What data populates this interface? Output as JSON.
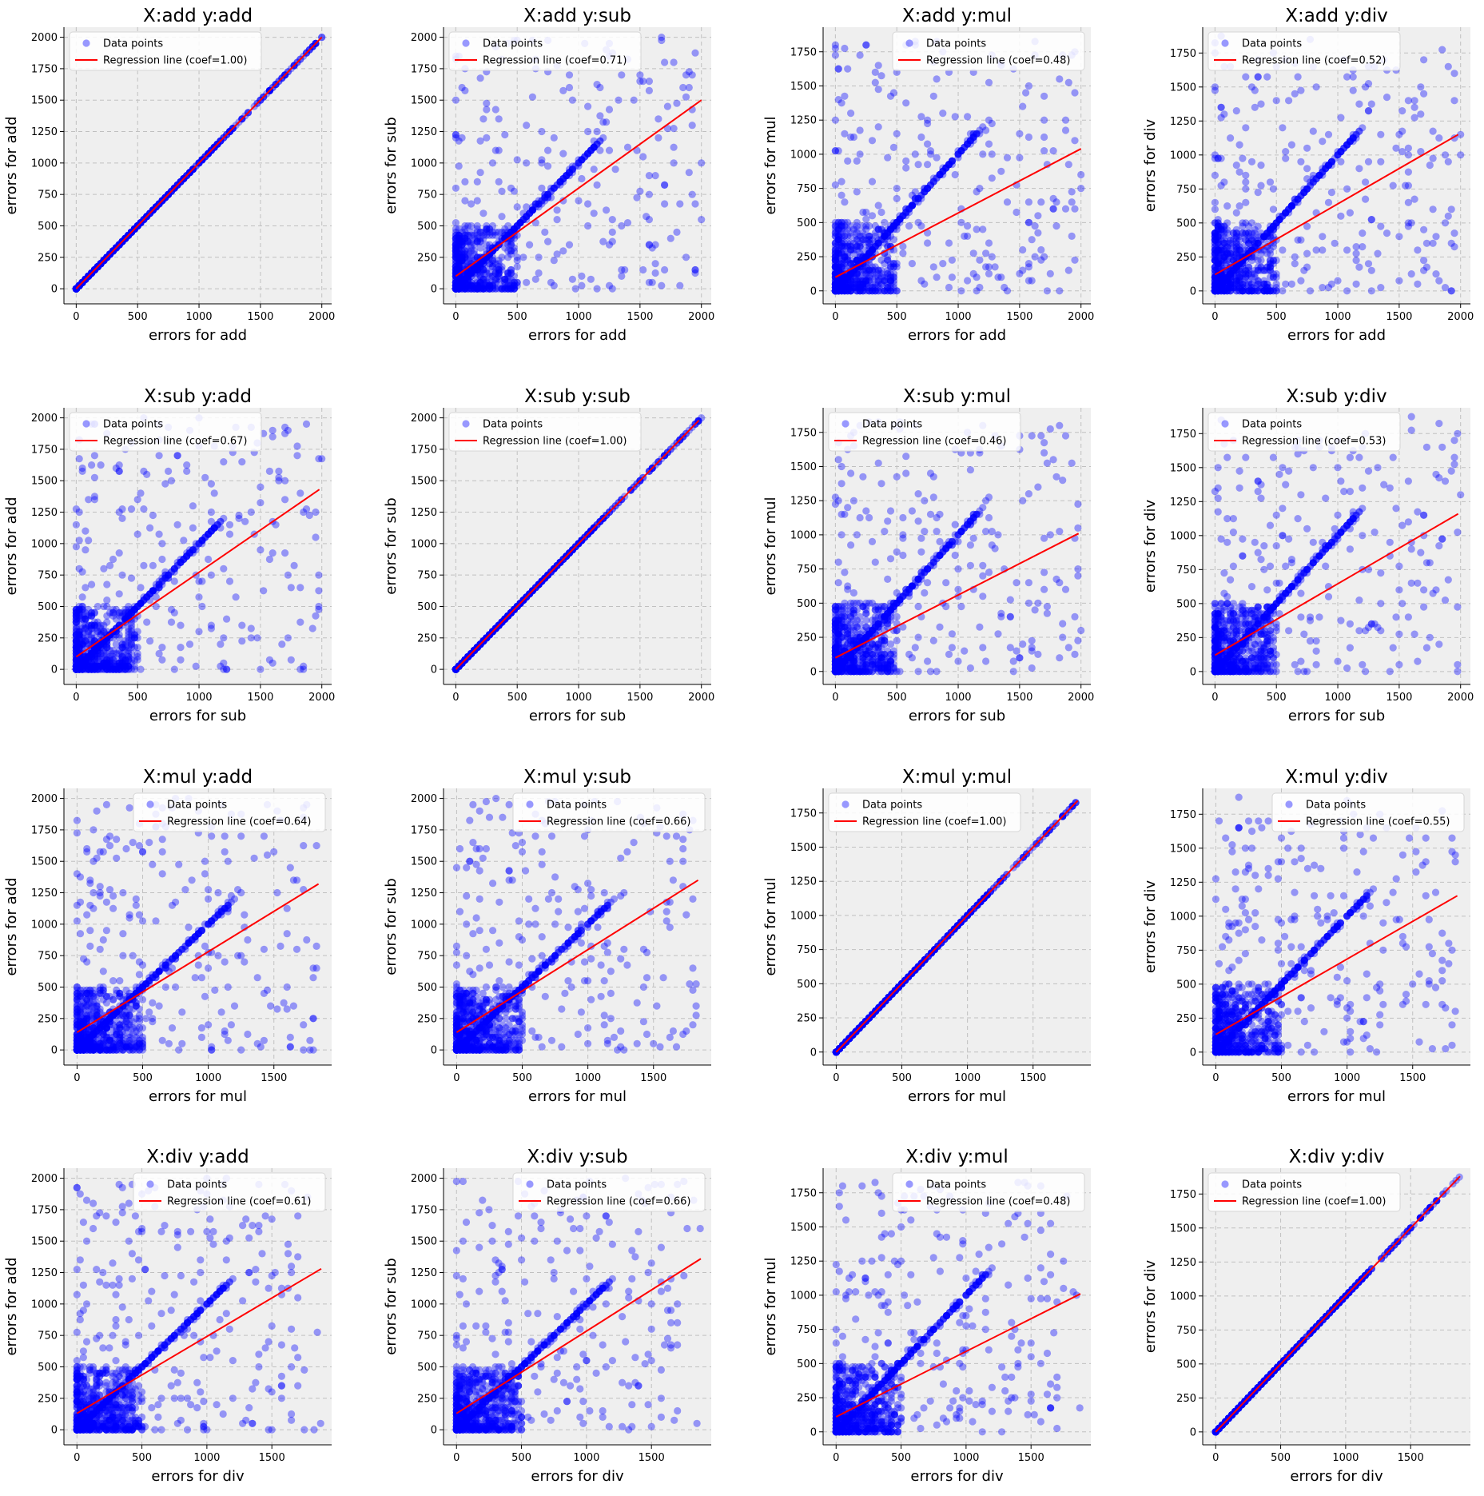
{
  "figure": {
    "legend_labels": {
      "points": "Data points",
      "line_prefix": "Regression line (coef=",
      "line_suffix": ")"
    },
    "colors": {
      "points": "#0000ff",
      "line": "#ff0000",
      "axes_bg": "#efefef",
      "grid": "#c0c0c0"
    }
  },
  "chart_data": [
    {
      "type": "scatter",
      "title": "X:add   y:add",
      "xlabel": "errors for add",
      "ylabel": "errors for add",
      "xlim": [
        -100,
        2080
      ],
      "ylim": [
        -120,
        2080
      ],
      "xticks": [
        0,
        500,
        1000,
        1500,
        2000
      ],
      "yticks": [
        0,
        250,
        500,
        750,
        1000,
        1250,
        1500,
        1750,
        2000
      ],
      "series": [
        {
          "name": "Data points",
          "kind": "scatter"
        },
        {
          "name": "Regression line",
          "kind": "line",
          "coef": "1.00",
          "x": [
            0,
            2000
          ],
          "y": [
            0,
            2000
          ]
        }
      ],
      "legend": "top-left",
      "grid": true
    },
    {
      "type": "scatter",
      "title": "X:add   y:sub",
      "xlabel": "errors for add",
      "ylabel": "errors for sub",
      "xlim": [
        -100,
        2080
      ],
      "ylim": [
        -120,
        2080
      ],
      "xticks": [
        0,
        500,
        1000,
        1500,
        2000
      ],
      "yticks": [
        0,
        250,
        500,
        750,
        1000,
        1250,
        1500,
        1750,
        2000
      ],
      "series": [
        {
          "name": "Data points",
          "kind": "scatter"
        },
        {
          "name": "Regression line",
          "kind": "line",
          "coef": "0.71",
          "x": [
            0,
            2000
          ],
          "y": [
            100,
            1500
          ]
        }
      ],
      "legend": "top-left",
      "grid": true
    },
    {
      "type": "scatter",
      "title": "X:add   y:mul",
      "xlabel": "errors for add",
      "ylabel": "errors for mul",
      "xlim": [
        -100,
        2080
      ],
      "ylim": [
        -95,
        1930
      ],
      "xticks": [
        0,
        500,
        1000,
        1500,
        2000
      ],
      "yticks": [
        0,
        250,
        500,
        750,
        1000,
        1250,
        1500,
        1750
      ],
      "series": [
        {
          "name": "Data points",
          "kind": "scatter"
        },
        {
          "name": "Regression line",
          "kind": "line",
          "coef": "0.48",
          "x": [
            0,
            2000
          ],
          "y": [
            100,
            1040
          ]
        }
      ],
      "legend": "top-right",
      "grid": true
    },
    {
      "type": "scatter",
      "title": "X:add   y:div",
      "xlabel": "errors for add",
      "ylabel": "errors for div",
      "xlim": [
        -100,
        2080
      ],
      "ylim": [
        -95,
        1940
      ],
      "xticks": [
        0,
        500,
        1000,
        1500,
        2000
      ],
      "yticks": [
        0,
        250,
        500,
        750,
        1000,
        1250,
        1500,
        1750
      ],
      "series": [
        {
          "name": "Data points",
          "kind": "scatter"
        },
        {
          "name": "Regression line",
          "kind": "line",
          "coef": "0.52",
          "x": [
            0,
            1980
          ],
          "y": [
            120,
            1150
          ]
        }
      ],
      "legend": "top-left",
      "grid": true
    },
    {
      "type": "scatter",
      "title": "X:sub   y:add",
      "xlabel": "errors for sub",
      "ylabel": "errors for add",
      "xlim": [
        -100,
        2080
      ],
      "ylim": [
        -120,
        2080
      ],
      "xticks": [
        0,
        500,
        1000,
        1500,
        2000
      ],
      "yticks": [
        0,
        250,
        500,
        750,
        1000,
        1250,
        1500,
        1750,
        2000
      ],
      "series": [
        {
          "name": "Data points",
          "kind": "scatter"
        },
        {
          "name": "Regression line",
          "kind": "line",
          "coef": "0.67",
          "x": [
            0,
            1980
          ],
          "y": [
            100,
            1430
          ]
        }
      ],
      "legend": "top-left",
      "grid": true
    },
    {
      "type": "scatter",
      "title": "X:sub   y:sub",
      "xlabel": "errors for sub",
      "ylabel": "errors for sub",
      "xlim": [
        -100,
        2080
      ],
      "ylim": [
        -120,
        2080
      ],
      "xticks": [
        0,
        500,
        1000,
        1500,
        2000
      ],
      "yticks": [
        0,
        250,
        500,
        750,
        1000,
        1250,
        1500,
        1750,
        2000
      ],
      "series": [
        {
          "name": "Data points",
          "kind": "scatter"
        },
        {
          "name": "Regression line",
          "kind": "line",
          "coef": "1.00",
          "x": [
            0,
            1980
          ],
          "y": [
            0,
            1980
          ]
        }
      ],
      "legend": "top-left",
      "grid": true
    },
    {
      "type": "scatter",
      "title": "X:sub   y:mul",
      "xlabel": "errors for sub",
      "ylabel": "errors for mul",
      "xlim": [
        -100,
        2080
      ],
      "ylim": [
        -95,
        1930
      ],
      "xticks": [
        0,
        500,
        1000,
        1500,
        2000
      ],
      "yticks": [
        0,
        250,
        500,
        750,
        1000,
        1250,
        1500,
        1750
      ],
      "series": [
        {
          "name": "Data points",
          "kind": "scatter"
        },
        {
          "name": "Regression line",
          "kind": "line",
          "coef": "0.46",
          "x": [
            0,
            1980
          ],
          "y": [
            100,
            1010
          ]
        }
      ],
      "legend": "top-left",
      "grid": true
    },
    {
      "type": "scatter",
      "title": "X:sub   y:div",
      "xlabel": "errors for sub",
      "ylabel": "errors for div",
      "xlim": [
        -100,
        2080
      ],
      "ylim": [
        -95,
        1940
      ],
      "xticks": [
        0,
        500,
        1000,
        1500,
        2000
      ],
      "yticks": [
        0,
        250,
        500,
        750,
        1000,
        1250,
        1500,
        1750
      ],
      "series": [
        {
          "name": "Data points",
          "kind": "scatter"
        },
        {
          "name": "Regression line",
          "kind": "line",
          "coef": "0.53",
          "x": [
            0,
            1980
          ],
          "y": [
            120,
            1160
          ]
        }
      ],
      "legend": "top-left",
      "grid": true
    },
    {
      "type": "scatter",
      "title": "X:mul   y:add",
      "xlabel": "errors for mul",
      "ylabel": "errors for add",
      "xlim": [
        -100,
        1940
      ],
      "ylim": [
        -120,
        2080
      ],
      "xticks": [
        0,
        500,
        1000,
        1500
      ],
      "yticks": [
        0,
        250,
        500,
        750,
        1000,
        1250,
        1500,
        1750,
        2000
      ],
      "series": [
        {
          "name": "Data points",
          "kind": "scatter"
        },
        {
          "name": "Regression line",
          "kind": "line",
          "coef": "0.64",
          "x": [
            0,
            1840
          ],
          "y": [
            140,
            1320
          ]
        }
      ],
      "legend": "top-right",
      "grid": true
    },
    {
      "type": "scatter",
      "title": "X:mul   y:sub",
      "xlabel": "errors for mul",
      "ylabel": "errors for sub",
      "xlim": [
        -100,
        1940
      ],
      "ylim": [
        -120,
        2080
      ],
      "xticks": [
        0,
        500,
        1000,
        1500
      ],
      "yticks": [
        0,
        250,
        500,
        750,
        1000,
        1250,
        1500,
        1750,
        2000
      ],
      "series": [
        {
          "name": "Data points",
          "kind": "scatter"
        },
        {
          "name": "Regression line",
          "kind": "line",
          "coef": "0.66",
          "x": [
            0,
            1840
          ],
          "y": [
            140,
            1350
          ]
        }
      ],
      "legend": "top-right",
      "grid": true
    },
    {
      "type": "scatter",
      "title": "X:mul   y:mul",
      "xlabel": "errors for mul",
      "ylabel": "errors for mul",
      "xlim": [
        -100,
        1940
      ],
      "ylim": [
        -95,
        1930
      ],
      "xticks": [
        0,
        500,
        1000,
        1500
      ],
      "yticks": [
        0,
        250,
        500,
        750,
        1000,
        1250,
        1500,
        1750
      ],
      "series": [
        {
          "name": "Data points",
          "kind": "scatter"
        },
        {
          "name": "Regression line",
          "kind": "line",
          "coef": "1.00",
          "x": [
            0,
            1840
          ],
          "y": [
            0,
            1840
          ]
        }
      ],
      "legend": "top-left",
      "grid": true
    },
    {
      "type": "scatter",
      "title": "X:mul   y:div",
      "xlabel": "errors for mul",
      "ylabel": "errors for div",
      "xlim": [
        -100,
        1940
      ],
      "ylim": [
        -95,
        1940
      ],
      "xticks": [
        0,
        500,
        1000,
        1500
      ],
      "yticks": [
        0,
        250,
        500,
        750,
        1000,
        1250,
        1500,
        1750
      ],
      "series": [
        {
          "name": "Data points",
          "kind": "scatter"
        },
        {
          "name": "Regression line",
          "kind": "line",
          "coef": "0.55",
          "x": [
            0,
            1840
          ],
          "y": [
            130,
            1150
          ]
        }
      ],
      "legend": "top-right",
      "grid": true
    },
    {
      "type": "scatter",
      "title": "X:div   y:add",
      "xlabel": "errors for div",
      "ylabel": "errors for add",
      "xlim": [
        -100,
        1960
      ],
      "ylim": [
        -120,
        2080
      ],
      "xticks": [
        0,
        500,
        1000,
        1500
      ],
      "yticks": [
        0,
        250,
        500,
        750,
        1000,
        1250,
        1500,
        1750,
        2000
      ],
      "series": [
        {
          "name": "Data points",
          "kind": "scatter"
        },
        {
          "name": "Regression line",
          "kind": "line",
          "coef": "0.61",
          "x": [
            0,
            1880
          ],
          "y": [
            130,
            1280
          ]
        }
      ],
      "legend": "top-right",
      "grid": true
    },
    {
      "type": "scatter",
      "title": "X:div   y:sub",
      "xlabel": "errors for div",
      "ylabel": "errors for sub",
      "xlim": [
        -100,
        1960
      ],
      "ylim": [
        -120,
        2080
      ],
      "xticks": [
        0,
        500,
        1000,
        1500
      ],
      "yticks": [
        0,
        250,
        500,
        750,
        1000,
        1250,
        1500,
        1750,
        2000
      ],
      "series": [
        {
          "name": "Data points",
          "kind": "scatter"
        },
        {
          "name": "Regression line",
          "kind": "line",
          "coef": "0.66",
          "x": [
            0,
            1880
          ],
          "y": [
            130,
            1360
          ]
        }
      ],
      "legend": "top-right",
      "grid": true
    },
    {
      "type": "scatter",
      "title": "X:div   y:mul",
      "xlabel": "errors for div",
      "ylabel": "errors for mul",
      "xlim": [
        -100,
        1960
      ],
      "ylim": [
        -95,
        1930
      ],
      "xticks": [
        0,
        500,
        1000,
        1500
      ],
      "yticks": [
        0,
        250,
        500,
        750,
        1000,
        1250,
        1500,
        1750
      ],
      "series": [
        {
          "name": "Data points",
          "kind": "scatter"
        },
        {
          "name": "Regression line",
          "kind": "line",
          "coef": "0.48",
          "x": [
            0,
            1880
          ],
          "y": [
            110,
            1010
          ]
        }
      ],
      "legend": "top-right",
      "grid": true
    },
    {
      "type": "scatter",
      "title": "X:div   y:div",
      "xlabel": "errors for div",
      "ylabel": "errors for div",
      "xlim": [
        -100,
        1960
      ],
      "ylim": [
        -95,
        1940
      ],
      "xticks": [
        0,
        500,
        1000,
        1500
      ],
      "yticks": [
        0,
        250,
        500,
        750,
        1000,
        1250,
        1500,
        1750
      ],
      "series": [
        {
          "name": "Data points",
          "kind": "scatter"
        },
        {
          "name": "Regression line",
          "kind": "line",
          "coef": "1.00",
          "x": [
            0,
            1880
          ],
          "y": [
            0,
            1880
          ]
        }
      ],
      "legend": "top-left",
      "grid": true
    }
  ]
}
